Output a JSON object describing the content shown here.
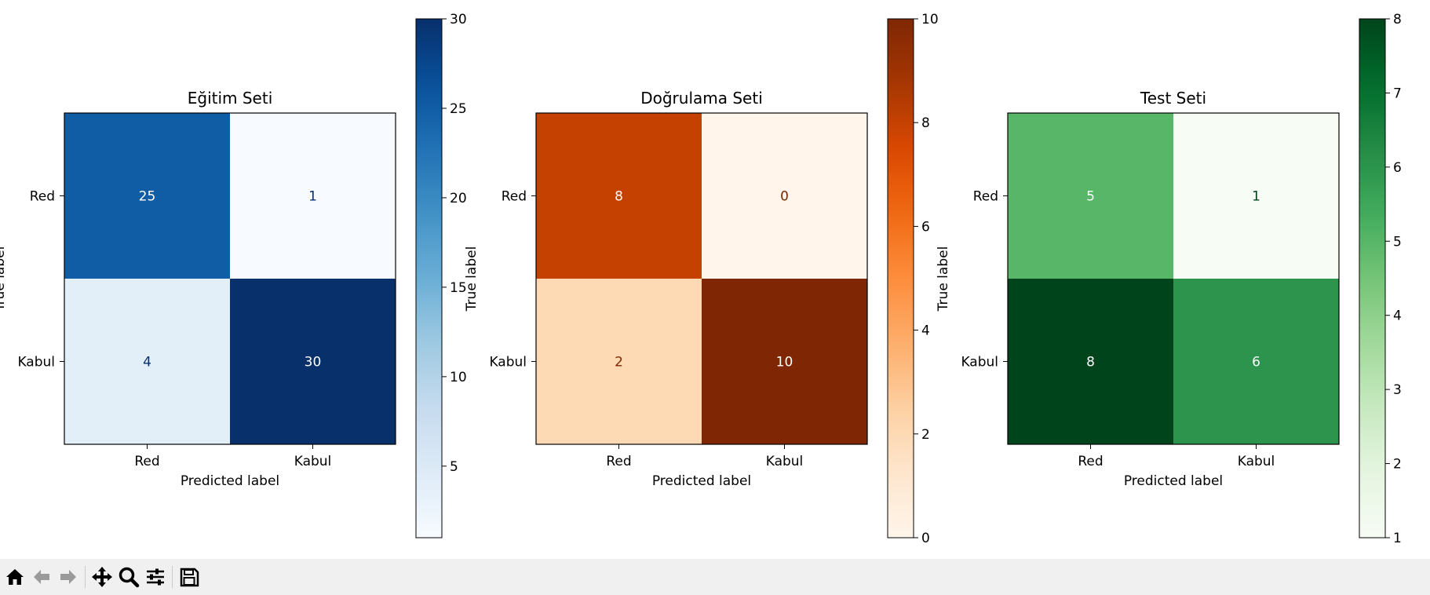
{
  "chart_data": [
    {
      "type": "heatmap",
      "title": "Eğitim Seti",
      "xlabel": "Predicted label",
      "ylabel": "True label",
      "x_categories": [
        "Red",
        "Kabul"
      ],
      "y_categories": [
        "Red",
        "Kabul"
      ],
      "values": [
        [
          25,
          1
        ],
        [
          4,
          30
        ]
      ],
      "colormap": "Blues",
      "colorbar": {
        "min": 1,
        "max": 30,
        "ticks": [
          5,
          10,
          15,
          20,
          25,
          30
        ]
      },
      "colors": {
        "low": "#f7fbff",
        "high": "#08306b"
      }
    },
    {
      "type": "heatmap",
      "title": "Doğrulama Seti",
      "xlabel": "Predicted label",
      "ylabel": "True label",
      "x_categories": [
        "Red",
        "Kabul"
      ],
      "y_categories": [
        "Red",
        "Kabul"
      ],
      "values": [
        [
          8,
          0
        ],
        [
          2,
          10
        ]
      ],
      "colormap": "Oranges",
      "colorbar": {
        "min": 0,
        "max": 10,
        "ticks": [
          0,
          2,
          4,
          6,
          8,
          10
        ]
      },
      "colors": {
        "low": "#fff5eb",
        "high": "#7f2704"
      }
    },
    {
      "type": "heatmap",
      "title": "Test Seti",
      "xlabel": "Predicted label",
      "ylabel": "True label",
      "x_categories": [
        "Red",
        "Kabul"
      ],
      "y_categories": [
        "Red",
        "Kabul"
      ],
      "values": [
        [
          5,
          1
        ],
        [
          8,
          6
        ]
      ],
      "colormap": "Greens",
      "colorbar": {
        "min": 1,
        "max": 8,
        "ticks": [
          1,
          2,
          3,
          4,
          5,
          6,
          7,
          8
        ]
      },
      "colors": {
        "low": "#f7fcf5",
        "high": "#00441b"
      }
    }
  ],
  "toolbar": {
    "buttons": [
      {
        "icon": "home-icon"
      },
      {
        "icon": "back-arrow-icon"
      },
      {
        "icon": "forward-arrow-icon"
      },
      {
        "icon": "pan-move-icon"
      },
      {
        "icon": "zoom-magnifier-icon"
      },
      {
        "icon": "configure-subplots-icon"
      },
      {
        "icon": "save-floppy-icon"
      }
    ],
    "colors": {
      "background": "#f0f0f0",
      "icon": "#000000",
      "disabled_icon": "#9a9a9a"
    }
  }
}
